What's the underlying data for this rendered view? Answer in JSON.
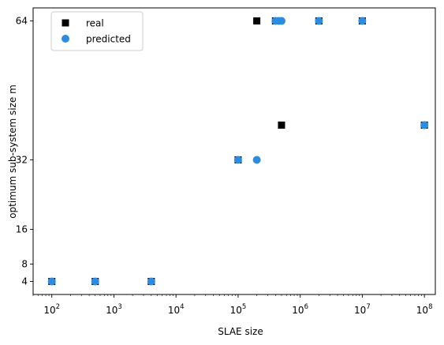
{
  "chart_data": {
    "type": "scatter",
    "title": "",
    "xlabel": "SLAE size",
    "ylabel": "optimum sub-system size m",
    "xscale": "log",
    "xlim": [
      50,
      150000000
    ],
    "ylim": [
      1,
      67
    ],
    "x_ticks": [
      {
        "value": 100,
        "base": "10",
        "exp": "2"
      },
      {
        "value": 1000,
        "base": "10",
        "exp": "3"
      },
      {
        "value": 10000,
        "base": "10",
        "exp": "4"
      },
      {
        "value": 100000,
        "base": "10",
        "exp": "5"
      },
      {
        "value": 1000000,
        "base": "10",
        "exp": "6"
      },
      {
        "value": 10000000,
        "base": "10",
        "exp": "7"
      },
      {
        "value": 100000000,
        "base": "10",
        "exp": "8"
      }
    ],
    "y_ticks": [
      {
        "value": 4,
        "label": "4"
      },
      {
        "value": 8,
        "label": "8"
      },
      {
        "value": 16,
        "label": "16"
      },
      {
        "value": 32,
        "label": "32"
      },
      {
        "value": 64,
        "label": "64"
      }
    ],
    "grid": false,
    "legend_position": "top-left",
    "series": [
      {
        "name": "real",
        "marker": "square",
        "color": "#000000",
        "points": [
          {
            "x": 100,
            "y": 4
          },
          {
            "x": 500,
            "y": 4
          },
          {
            "x": 4000,
            "y": 4
          },
          {
            "x": 100000,
            "y": 32
          },
          {
            "x": 200000,
            "y": 64
          },
          {
            "x": 400000,
            "y": 64
          },
          {
            "x": 500000,
            "y": 40
          },
          {
            "x": 2000000,
            "y": 64
          },
          {
            "x": 10000000,
            "y": 64
          },
          {
            "x": 100000000,
            "y": 40
          }
        ]
      },
      {
        "name": "predicted",
        "marker": "circle",
        "color": "#2e8ce0",
        "points": [
          {
            "x": 100,
            "y": 4
          },
          {
            "x": 500,
            "y": 4
          },
          {
            "x": 4000,
            "y": 4
          },
          {
            "x": 100000,
            "y": 32
          },
          {
            "x": 200000,
            "y": 32
          },
          {
            "x": 400000,
            "y": 64
          },
          {
            "x": 450000,
            "y": 64
          },
          {
            "x": 500000,
            "y": 64
          },
          {
            "x": 2000000,
            "y": 64
          },
          {
            "x": 10000000,
            "y": 64
          },
          {
            "x": 100000000,
            "y": 40
          }
        ]
      }
    ]
  }
}
